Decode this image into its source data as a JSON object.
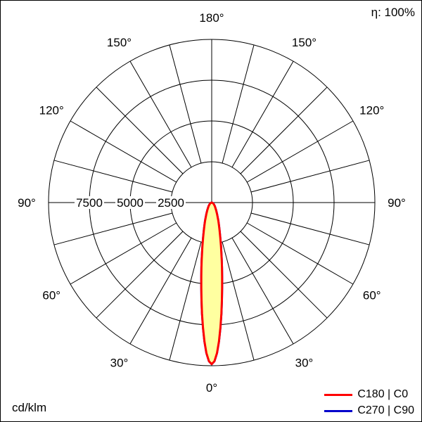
{
  "header": {
    "eta": "η: 100%"
  },
  "footer": {
    "unit": "cd/klm"
  },
  "legend": {
    "items": [
      {
        "label": "C180 | C0",
        "color": "#ff0000"
      },
      {
        "label": "C270 | C90",
        "color": "#0000cc"
      }
    ]
  },
  "chart_data": {
    "type": "polar",
    "title": "",
    "unit": "cd/klm",
    "efficiency": "η: 100%",
    "r_max": 10000,
    "ring_values": [
      2500,
      5000,
      7500
    ],
    "angle_step_deg": 15,
    "angle_labels": [
      "0°",
      "30°",
      "60°",
      "90°",
      "120°",
      "150°",
      "180°"
    ],
    "grid_color": "#000000",
    "series": [
      {
        "name": "C270 | C90",
        "color": "#0000cc",
        "fill": "#ffffa0",
        "gamma_deg": [
          0,
          1,
          2,
          3,
          4,
          5,
          6,
          7,
          8,
          9,
          10,
          12,
          14,
          16,
          18,
          20,
          25,
          30,
          40,
          50,
          60,
          75,
          90
        ],
        "values": [
          9900,
          9727,
          9235,
          8523,
          7678,
          6819,
          5996,
          5246,
          4585,
          4010,
          3517,
          2734,
          2163,
          1741,
          1424,
          1181,
          780,
          546,
          300,
          179,
          110,
          46,
          0
        ]
      },
      {
        "name": "C180 | C0",
        "color": "#ff0000",
        "fill": "#ffffa0",
        "gamma_deg": [
          0,
          1,
          2,
          3,
          4,
          5,
          6,
          7,
          8,
          9,
          10,
          12,
          14,
          16,
          18,
          20,
          25,
          30,
          40,
          50,
          60,
          75,
          90
        ],
        "values": [
          9900,
          9727,
          9235,
          8523,
          7678,
          6819,
          5996,
          5246,
          4585,
          4010,
          3517,
          2734,
          2163,
          1741,
          1424,
          1181,
          780,
          546,
          300,
          179,
          110,
          46,
          0
        ]
      }
    ]
  }
}
